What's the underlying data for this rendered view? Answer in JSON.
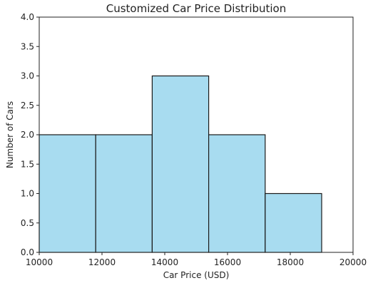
{
  "chart_data": {
    "type": "bar",
    "title": "Customized Car Price Distribution",
    "xlabel": "Car Price (USD)",
    "ylabel": "Number of Cars",
    "bins": [
      {
        "x0": 10000,
        "x1": 11800,
        "count": 2
      },
      {
        "x0": 11800,
        "x1": 13600,
        "count": 2
      },
      {
        "x0": 13600,
        "x1": 15400,
        "count": 3
      },
      {
        "x0": 15400,
        "x1": 17200,
        "count": 2
      },
      {
        "x0": 17200,
        "x1": 19000,
        "count": 1
      }
    ],
    "xlim": [
      10000,
      20000
    ],
    "ylim": [
      0,
      4.0
    ],
    "xticks": [
      10000,
      12000,
      14000,
      16000,
      18000,
      20000
    ],
    "xtick_labels": [
      "10000",
      "12000",
      "14000",
      "16000",
      "18000",
      "20000"
    ],
    "yticks": [
      0,
      0.5,
      1.0,
      1.5,
      2.0,
      2.5,
      3.0,
      3.5,
      4.0
    ],
    "ytick_labels": [
      "0.0",
      "0.5",
      "1.0",
      "1.5",
      "2.0",
      "2.5",
      "3.0",
      "3.5",
      "4.0"
    ],
    "grid": false,
    "bar_color": "#a8dcf0",
    "bar_edge_color": "#1a1a1a"
  }
}
